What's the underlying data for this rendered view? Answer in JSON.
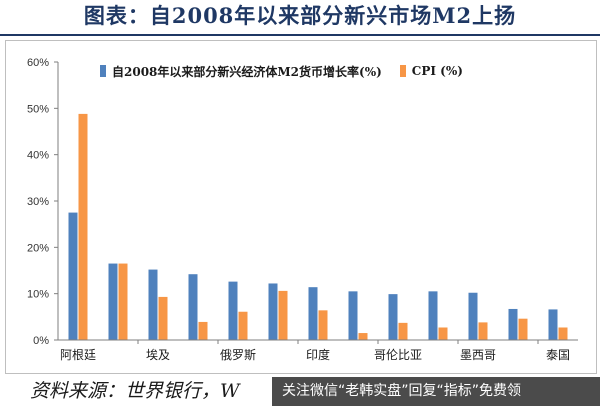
{
  "title": "图表：自2008年以来部分新兴市场M2上扬",
  "footer": {
    "source": "资料来源：世界银行，W",
    "banner": "关注微信“老韩实盘”回复“指标”免费领"
  },
  "colors": {
    "m2": "#4f81bd",
    "cpi": "#f79646",
    "axis": "#7f7f7f",
    "title": "#1f3864"
  },
  "chart_data": {
    "type": "bar",
    "categories": [
      "阿根廷",
      "",
      "埃及",
      "",
      "俄罗斯",
      "",
      "印度",
      "",
      "哥伦比亚",
      "",
      "墨西哥",
      "",
      "泰国"
    ],
    "series": [
      {
        "name": "自2008年以来部分新兴经济体M2货币增长率(%)",
        "values": [
          27.5,
          16.5,
          15.2,
          14.2,
          12.6,
          12.2,
          11.4,
          10.5,
          9.9,
          10.5,
          10.2,
          6.7,
          6.6
        ]
      },
      {
        "name": "CPI (%)",
        "values": [
          48.8,
          16.5,
          9.3,
          3.9,
          6.1,
          10.6,
          6.4,
          1.5,
          3.7,
          2.7,
          3.8,
          4.6,
          2.7
        ]
      }
    ],
    "ylim": [
      0,
      60
    ],
    "yticks": [
      "0%",
      "10%",
      "20%",
      "30%",
      "40%",
      "50%",
      "60%"
    ],
    "legend_position": "top",
    "grid": false
  }
}
